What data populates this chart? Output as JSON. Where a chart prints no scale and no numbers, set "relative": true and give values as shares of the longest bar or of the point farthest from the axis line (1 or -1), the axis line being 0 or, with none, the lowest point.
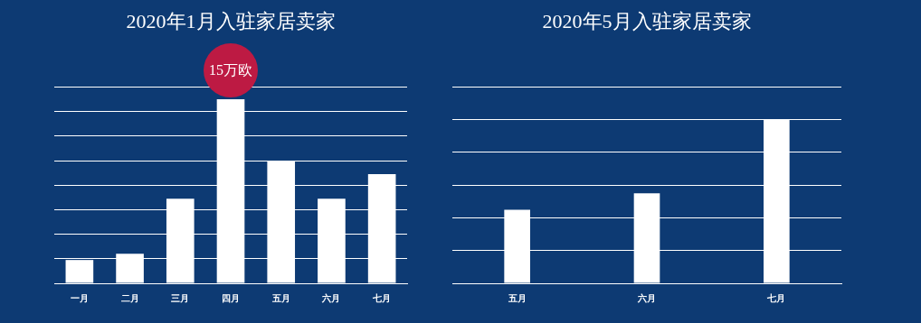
{
  "chart_data": [
    {
      "type": "bar",
      "title": "2020年1月入驻家居卖家",
      "categories": [
        "一月",
        "二月",
        "三月",
        "四月",
        "五月",
        "六月",
        "七月"
      ],
      "ylim": [
        0,
        16
      ],
      "yticks": [
        {
          "value": 0,
          "label": null
        },
        {
          "value": 2,
          "label": null
        },
        {
          "value": 4,
          "label": null
        },
        {
          "value": 6,
          "label": null
        },
        {
          "value": 8,
          "label": null
        },
        {
          "value": 10,
          "label": null
        },
        {
          "value": 12,
          "label": null
        },
        {
          "value": 14,
          "label": null
        },
        {
          "value": 16,
          "label": null
        }
      ],
      "tick_labels": "x",
      "grid": "y",
      "color": "#ffffff",
      "values": [
        1.9,
        2.4,
        6.9,
        15,
        10,
        6.9,
        8.9
      ],
      "value_labels": [
        null,
        null,
        null,
        "15万欧",
        null,
        null,
        null
      ]
    },
    {
      "type": "bar",
      "title": "2020年5月入驻家居卖家",
      "categories": [
        "五月",
        "六月",
        "七月"
      ],
      "relative": true,
      "grid": "y",
      "color": "#ffffff",
      "values": [
        0.45,
        0.55,
        1
      ]
    }
  ]
}
